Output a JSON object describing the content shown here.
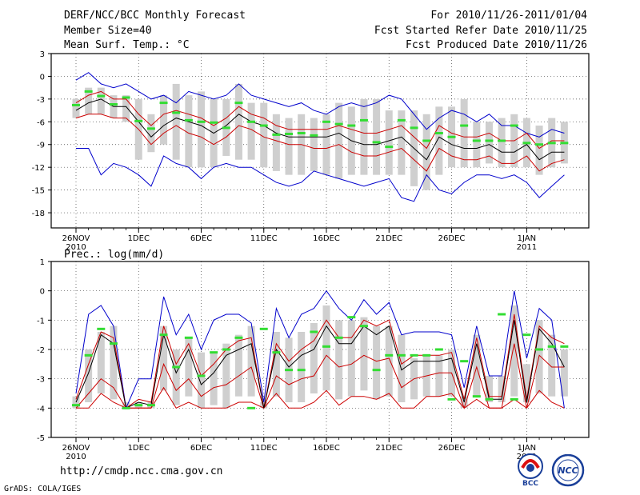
{
  "header": {
    "title": "DERF/NCC/BCC Monthly Forecast",
    "member_size": "Member Size=40",
    "variable": "Mean Surf. Temp.: °C",
    "forecast_period": "For 2010/11/26-2011/01/04",
    "started_refer": "Fcst Started Refer Date 2010/11/25",
    "produced": "Fcst Produced Date 2010/11/26"
  },
  "precip_label": "Prec.: log(mm/d)",
  "footer": {
    "url": "http://cmdp.ncc.cma.gov.cn",
    "grads": "GrADS: COLA/IGES",
    "logo_bcc": "BCC",
    "logo_ncc": "NCC"
  },
  "colors": {
    "envelope": "#0000cc",
    "spread": "#cc0000",
    "mean": "#000000",
    "box": "#cfcfcf",
    "obs": "#33dd33"
  },
  "x_ticks": [
    {
      "day": 0,
      "label": "26NOV",
      "sub": "2010"
    },
    {
      "day": 5,
      "label": "1DEC",
      "sub": ""
    },
    {
      "day": 10,
      "label": "6DEC",
      "sub": ""
    },
    {
      "day": 15,
      "label": "11DEC",
      "sub": ""
    },
    {
      "day": 20,
      "label": "16DEC",
      "sub": ""
    },
    {
      "day": 25,
      "label": "21DEC",
      "sub": ""
    },
    {
      "day": 30,
      "label": "26DEC",
      "sub": ""
    },
    {
      "day": 36,
      "label": "1JAN",
      "sub": "2011"
    }
  ],
  "chart_data": [
    {
      "type": "line",
      "title": "Mean Surf. Temp.: °C",
      "ylim": [
        -20,
        3
      ],
      "yticks": [
        3,
        0,
        -3,
        -6,
        -9,
        -12,
        -15,
        -18
      ],
      "ytick_labels": [
        "3",
        "0",
        "-3",
        "-6",
        "-9",
        "-12",
        "-15",
        "-18"
      ],
      "x": [
        0,
        1,
        2,
        3,
        4,
        5,
        6,
        7,
        8,
        9,
        10,
        11,
        12,
        13,
        14,
        15,
        16,
        17,
        18,
        19,
        20,
        21,
        22,
        23,
        24,
        25,
        26,
        27,
        28,
        29,
        30,
        31,
        32,
        33,
        34,
        35,
        36,
        37,
        38,
        39
      ],
      "series": [
        {
          "name": "max",
          "color": "#0000cc",
          "values": [
            -0.5,
            0.5,
            -1.0,
            -1.5,
            -1.0,
            -2.0,
            -3.0,
            -2.5,
            -3.5,
            -2.0,
            -2.5,
            -3.0,
            -2.5,
            -1.0,
            -2.5,
            -3.0,
            -3.5,
            -4.0,
            -3.5,
            -4.5,
            -5.0,
            -4.0,
            -3.5,
            -4.0,
            -3.5,
            -2.5,
            -3.0,
            -5.0,
            -7.0,
            -5.5,
            -4.5,
            -5.0,
            -6.0,
            -5.0,
            -6.5,
            -6.5,
            -7.5,
            -8.0,
            -7.0,
            -7.5
          ]
        },
        {
          "name": "upper",
          "color": "#cc0000",
          "values": [
            -3.5,
            -2.5,
            -2.0,
            -3.0,
            -3.0,
            -5.0,
            -6.5,
            -5.0,
            -4.5,
            -5.0,
            -5.5,
            -6.5,
            -5.5,
            -4.0,
            -5.0,
            -5.5,
            -6.5,
            -7.0,
            -7.0,
            -7.0,
            -7.0,
            -6.5,
            -7.0,
            -7.5,
            -7.5,
            -7.0,
            -6.5,
            -8.0,
            -9.5,
            -6.5,
            -7.5,
            -8.0,
            -8.0,
            -7.5,
            -8.5,
            -8.5,
            -7.5,
            -9.5,
            -8.5,
            -8.5
          ]
        },
        {
          "name": "mean",
          "color": "#000000",
          "values": [
            -4.5,
            -3.5,
            -3.0,
            -4.0,
            -4.0,
            -6.0,
            -8.0,
            -6.5,
            -5.5,
            -6.0,
            -6.5,
            -7.5,
            -6.5,
            -5.0,
            -6.0,
            -6.5,
            -7.5,
            -8.0,
            -8.0,
            -8.0,
            -8.0,
            -7.5,
            -8.5,
            -9.0,
            -9.0,
            -8.5,
            -8.0,
            -9.5,
            -11.0,
            -8.0,
            -9.0,
            -9.5,
            -9.5,
            -9.0,
            -10.0,
            -10.0,
            -9.0,
            -11.0,
            -10.0,
            -10.0
          ]
        },
        {
          "name": "lower",
          "color": "#cc0000",
          "values": [
            -5.5,
            -5.0,
            -5.0,
            -5.5,
            -5.5,
            -7.0,
            -9.0,
            -7.5,
            -6.5,
            -7.5,
            -8.0,
            -9.0,
            -8.0,
            -6.5,
            -7.0,
            -8.0,
            -8.5,
            -9.0,
            -9.0,
            -9.5,
            -9.5,
            -9.0,
            -10.0,
            -10.5,
            -10.5,
            -10.0,
            -9.5,
            -11.0,
            -12.5,
            -9.5,
            -10.5,
            -11.0,
            -11.0,
            -10.5,
            -11.5,
            -11.5,
            -10.5,
            -12.5,
            -11.5,
            -11.0
          ]
        },
        {
          "name": "min",
          "color": "#0000cc",
          "values": [
            -9.5,
            -9.5,
            -13.0,
            -11.5,
            -12.0,
            -13.0,
            -14.5,
            -10.5,
            -11.5,
            -12.0,
            -13.5,
            -12.0,
            -11.5,
            -12.0,
            -12.0,
            -13.0,
            -14.0,
            -14.5,
            -14.0,
            -12.5,
            -13.0,
            -13.5,
            -14.0,
            -14.5,
            -14.0,
            -13.5,
            -16.0,
            -16.5,
            -13.0,
            -15.0,
            -15.5,
            -14.0,
            -13.0,
            -13.0,
            -13.5,
            -13.0,
            -14.0,
            -16.0,
            -14.5,
            -13.0
          ]
        },
        {
          "name": "box_top",
          "color": "#cfcfcf",
          "values": [
            -3.0,
            -1.5,
            -1.5,
            -2.5,
            -2.5,
            -3.0,
            -5.0,
            -2.5,
            -1.0,
            -2.5,
            -2.0,
            -3.0,
            -3.0,
            -1.0,
            -3.5,
            -3.5,
            -5.0,
            -5.5,
            -5.0,
            -5.5,
            -5.0,
            -3.5,
            -4.0,
            -3.0,
            -3.0,
            -4.5,
            -4.5,
            -4.5,
            -5.0,
            -4.0,
            -4.0,
            -3.0,
            -6.0,
            -6.0,
            -5.5,
            -5.0,
            -5.5,
            -6.5,
            -5.5,
            -6.0
          ]
        },
        {
          "name": "box_bottom",
          "color": "#cfcfcf",
          "values": [
            -5.5,
            -5.0,
            -5.0,
            -5.5,
            -6.0,
            -11.0,
            -10.0,
            -9.0,
            -11.0,
            -12.0,
            -12.0,
            -12.0,
            -10.5,
            -11.0,
            -11.0,
            -12.0,
            -12.5,
            -13.0,
            -13.0,
            -12.5,
            -13.0,
            -13.5,
            -13.0,
            -13.0,
            -13.0,
            -13.0,
            -13.0,
            -14.5,
            -15.0,
            -13.0,
            -12.0,
            -12.0,
            -12.0,
            -11.5,
            -12.0,
            -12.0,
            -12.0,
            -13.0,
            -12.0,
            -11.5
          ]
        },
        {
          "name": "obs",
          "color": "#33dd33",
          "values": [
            -3.8,
            -2.0,
            -2.6,
            -3.7,
            -2.8,
            -5.9,
            -6.9,
            -3.5,
            -4.8,
            -5.8,
            -6.0,
            -6.1,
            -6.8,
            -3.5,
            -6.0,
            -6.5,
            -7.7,
            -7.6,
            -7.5,
            -7.8,
            -6.0,
            -6.3,
            -6.5,
            -5.8,
            -8.7,
            -9.3,
            -5.8,
            -6.8,
            -8.5,
            -7.5,
            -8.0,
            -6.5,
            -8.5,
            -8.5,
            -8.5,
            -6.5,
            -8.8,
            -9.0,
            -8.8,
            -8.8
          ]
        }
      ]
    },
    {
      "type": "line",
      "title": "Prec.: log(mm/d)",
      "ylim": [
        -5,
        1
      ],
      "yticks": [
        1,
        0,
        -1,
        -2,
        -3,
        -4,
        -5
      ],
      "ytick_labels": [
        "1",
        "0",
        "-1",
        "-2",
        "-3",
        "-4",
        "-5"
      ],
      "x": [
        0,
        1,
        2,
        3,
        4,
        5,
        6,
        7,
        8,
        9,
        10,
        11,
        12,
        13,
        14,
        15,
        16,
        17,
        18,
        19,
        20,
        21,
        22,
        23,
        24,
        25,
        26,
        27,
        28,
        29,
        30,
        31,
        32,
        33,
        34,
        35,
        36,
        37,
        38,
        39
      ],
      "series": [
        {
          "name": "max",
          "color": "#0000cc",
          "values": [
            -3.5,
            -0.8,
            -0.5,
            -1.2,
            -4.0,
            -3.0,
            -3.0,
            -0.2,
            -1.5,
            -0.8,
            -2.0,
            -1.0,
            -0.8,
            -0.8,
            -1.1,
            -3.8,
            -0.6,
            -1.6,
            -0.8,
            -0.6,
            0.0,
            -0.6,
            -1.0,
            -0.3,
            -0.8,
            -0.4,
            -1.5,
            -1.4,
            -1.4,
            -1.4,
            -1.5,
            -3.3,
            -1.2,
            -2.9,
            -2.9,
            0.0,
            -2.3,
            -0.6,
            -1.0,
            -4.0
          ]
        },
        {
          "name": "upper",
          "color": "#cc0000",
          "values": [
            -3.7,
            -2.5,
            -1.4,
            -1.6,
            -4.0,
            -3.7,
            -3.8,
            -1.2,
            -2.5,
            -1.8,
            -2.9,
            -2.5,
            -2.0,
            -1.7,
            -1.6,
            -4.0,
            -1.8,
            -2.4,
            -2.0,
            -1.7,
            -1.0,
            -1.6,
            -1.6,
            -1.0,
            -1.2,
            -1.0,
            -2.5,
            -2.2,
            -2.2,
            -2.2,
            -2.1,
            -3.7,
            -1.6,
            -3.6,
            -3.6,
            -0.8,
            -3.7,
            -1.2,
            -1.6,
            -1.8
          ]
        },
        {
          "name": "mean",
          "color": "#000000",
          "values": [
            -3.8,
            -2.8,
            -1.5,
            -1.8,
            -4.0,
            -3.8,
            -3.9,
            -1.5,
            -2.8,
            -2.0,
            -3.2,
            -2.8,
            -2.2,
            -2.0,
            -1.8,
            -4.0,
            -2.0,
            -2.6,
            -2.2,
            -2.0,
            -1.2,
            -1.8,
            -1.8,
            -1.2,
            -1.5,
            -1.2,
            -2.7,
            -2.4,
            -2.4,
            -2.4,
            -2.3,
            -3.8,
            -1.8,
            -3.7,
            -3.7,
            -1.0,
            -3.8,
            -1.3,
            -1.8,
            -2.6
          ]
        },
        {
          "name": "lower",
          "color": "#cc0000",
          "values": [
            -4.0,
            -3.5,
            -3.0,
            -3.3,
            -4.0,
            -4.0,
            -4.0,
            -2.5,
            -3.4,
            -3.0,
            -3.6,
            -3.3,
            -3.2,
            -2.9,
            -2.6,
            -4.0,
            -2.9,
            -3.2,
            -3.0,
            -2.9,
            -2.2,
            -2.6,
            -2.5,
            -2.2,
            -2.4,
            -2.3,
            -3.3,
            -3.0,
            -2.9,
            -2.8,
            -2.8,
            -4.0,
            -2.6,
            -4.0,
            -4.0,
            -1.8,
            -4.0,
            -2.2,
            -2.6,
            -2.6
          ]
        },
        {
          "name": "min",
          "color": "#cc0000",
          "values": [
            -4.0,
            -4.0,
            -3.5,
            -3.8,
            -4.0,
            -4.0,
            -4.0,
            -3.3,
            -4.0,
            -3.8,
            -4.0,
            -4.0,
            -4.0,
            -3.8,
            -3.8,
            -4.0,
            -3.5,
            -4.0,
            -4.0,
            -3.8,
            -3.4,
            -3.9,
            -3.6,
            -3.6,
            -3.7,
            -3.5,
            -4.0,
            -4.0,
            -3.6,
            -3.6,
            -3.5,
            -4.0,
            -3.7,
            -4.0,
            -4.0,
            -3.7,
            -4.0,
            -3.4,
            -3.8,
            -4.0
          ]
        },
        {
          "name": "box_top",
          "color": "#cfcfcf",
          "values": [
            -3.6,
            -2.0,
            -1.4,
            -1.2,
            -3.8,
            -3.8,
            -3.8,
            -1.2,
            -2.0,
            -1.6,
            -2.1,
            -2.1,
            -1.8,
            -1.5,
            -1.2,
            -3.8,
            -1.4,
            -1.6,
            -1.4,
            -1.1,
            -0.5,
            -1.0,
            -1.0,
            -0.9,
            -1.2,
            -1.2,
            -1.5,
            -2.3,
            -2.2,
            -2.2,
            -2.0,
            -3.6,
            -1.5,
            -2.9,
            -2.9,
            -0.5,
            -2.5,
            -1.0,
            -1.5,
            -2.0
          ]
        },
        {
          "name": "box_bottom",
          "color": "#cfcfcf",
          "values": [
            -4.0,
            -3.8,
            -3.5,
            -3.7,
            -4.0,
            -4.0,
            -4.0,
            -3.4,
            -3.9,
            -3.6,
            -4.0,
            -3.9,
            -4.0,
            -3.6,
            -3.6,
            -4.0,
            -3.6,
            -3.8,
            -3.8,
            -3.5,
            -3.4,
            -3.7,
            -3.6,
            -3.4,
            -3.7,
            -3.6,
            -3.8,
            -3.7,
            -3.6,
            -3.6,
            -3.6,
            -4.0,
            -3.6,
            -3.8,
            -3.8,
            -3.6,
            -3.8,
            -3.5,
            -3.6,
            -3.6
          ]
        },
        {
          "name": "obs",
          "color": "#33dd33",
          "values": [
            -3.9,
            -2.2,
            -1.3,
            -1.8,
            -4.0,
            -3.9,
            -3.9,
            -1.5,
            -2.6,
            -1.6,
            -2.9,
            -2.1,
            -2.0,
            -1.6,
            -4.0,
            -1.3,
            -2.1,
            -2.7,
            -2.7,
            -1.4,
            -1.9,
            -1.6,
            -0.9,
            -1.2,
            -2.7,
            -2.2,
            -2.2,
            -2.2,
            -2.2,
            -2.0,
            -3.7,
            -2.4,
            -3.6,
            -3.7,
            -0.8,
            -3.7,
            -1.5,
            -2.0,
            -1.9,
            -1.9
          ]
        }
      ]
    }
  ]
}
